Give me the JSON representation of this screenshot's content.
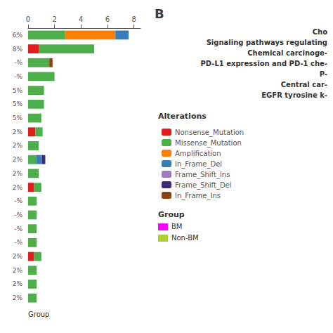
{
  "chart_data": {
    "type": "bar",
    "orientation": "horizontal",
    "stacked": true,
    "title": "B",
    "xlabel": "Group",
    "categories": [
      "6%",
      "8%",
      "-%",
      "-%",
      "5%",
      "5%",
      "5%",
      "2%",
      "2%",
      "2%",
      "2%",
      "2%",
      "-%",
      "-%",
      "-%",
      "-%",
      "2%",
      "2%",
      "2%",
      "2%"
    ],
    "series": [
      {
        "name": "Nonsense_Mutation",
        "color": "#e41a1c",
        "values": [
          0,
          0.8,
          0,
          0,
          0,
          0,
          0,
          0.55,
          0,
          0,
          0,
          0.45,
          0,
          0,
          0,
          0,
          0.45,
          0,
          0,
          0
        ]
      },
      {
        "name": "Missense_Mutation",
        "color": "#4daf4a",
        "values": [
          2.8,
          4.2,
          1.6,
          2.0,
          1.2,
          1.2,
          1.0,
          0.55,
          0.8,
          0.6,
          0.8,
          0.55,
          0.65,
          0.65,
          0.65,
          0.65,
          0.55,
          0.65,
          0.65,
          0.65
        ]
      },
      {
        "name": "Amplification",
        "color": "#ff7f00",
        "values": [
          3.8,
          0,
          0,
          0,
          0,
          0,
          0,
          0,
          0,
          0,
          0,
          0,
          0,
          0,
          0,
          0,
          0,
          0,
          0,
          0
        ]
      },
      {
        "name": "In_Frame_Del",
        "color": "#377eb8",
        "values": [
          1.0,
          0,
          0,
          0,
          0,
          0,
          0,
          0,
          0,
          0.45,
          0,
          0,
          0,
          0,
          0,
          0,
          0,
          0,
          0,
          0
        ]
      },
      {
        "name": "Frame_Shift_Ins",
        "color": "#9e7cbf",
        "values": [
          0,
          0,
          0,
          0,
          0,
          0,
          0,
          0,
          0,
          0,
          0,
          0,
          0,
          0,
          0,
          0,
          0,
          0,
          0,
          0
        ]
      },
      {
        "name": "Frame_Shift_Del",
        "color": "#3d2b7a",
        "values": [
          0,
          0,
          0,
          0,
          0,
          0,
          0,
          0,
          0,
          0.25,
          0,
          0,
          0,
          0,
          0,
          0,
          0,
          0,
          0,
          0
        ]
      },
      {
        "name": "In_Frame_Ins",
        "color": "#8b4513",
        "values": [
          0,
          0,
          0.25,
          0,
          0,
          0,
          0,
          0,
          0,
          0,
          0,
          0,
          0,
          0,
          0,
          0,
          0,
          0,
          0,
          0
        ]
      }
    ],
    "xlim": [
      0,
      8.5
    ],
    "xticks": [
      0,
      2,
      4,
      6,
      8
    ],
    "grid": false,
    "legend": "right",
    "legend_title": "Alterations",
    "group_legend": {
      "title": "Group",
      "items": [
        {
          "name": "BM",
          "color": "#ff00ff"
        },
        {
          "name": "Non-BM",
          "color": "#adcf2f"
        }
      ]
    },
    "annotations": [
      "Cho",
      "Signaling pathways regulating",
      "Chemical carcinoge-",
      "PD-L1 expression and PD-1 che-",
      "P-",
      "Central car-",
      "EGFR tyrosine k-"
    ]
  }
}
